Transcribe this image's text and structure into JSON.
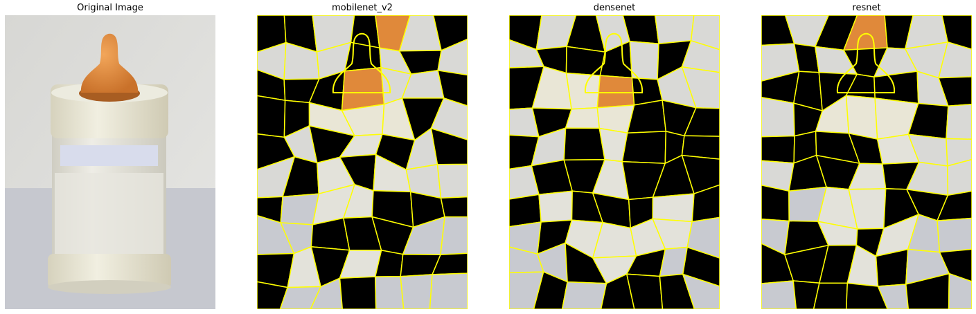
{
  "panels": [
    {
      "title": "Original Image",
      "kind": "original"
    },
    {
      "title": "mobilenet_v2",
      "kind": "segmented"
    },
    {
      "title": "densenet",
      "kind": "segmented"
    },
    {
      "title": "resnet",
      "kind": "segmented"
    }
  ],
  "colors": {
    "boundary": "#ffff00",
    "masked": "#000000",
    "wall": "#d9d9d6",
    "table": "#c8cad0",
    "cap": "#e9e6d6",
    "nipple": "#e0893a",
    "bottle": "#e3e2da"
  }
}
